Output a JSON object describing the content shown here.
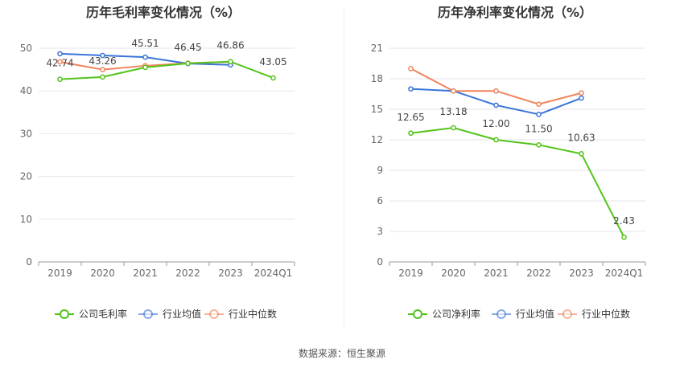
{
  "source_label": "数据来源：恒生聚源",
  "chart_data": [
    {
      "type": "line",
      "title": "历年毛利率变化情况（%）",
      "categories": [
        "2019",
        "2020",
        "2021",
        "2022",
        "2023",
        "2024Q1"
      ],
      "ylim": [
        0,
        50
      ],
      "yticks": [
        0,
        10,
        20,
        30,
        40,
        50
      ],
      "grid": true,
      "legend_position": "bottom",
      "series": [
        {
          "name": "公司毛利率",
          "color": "#52c41a",
          "values": [
            42.74,
            43.26,
            45.51,
            46.45,
            46.86,
            43.05
          ],
          "labels": [
            "42.74",
            "43.26",
            "45.51",
            "46.45",
            "46.86",
            "43.05"
          ]
        },
        {
          "name": "行业均值",
          "color": "#3a74d8",
          "values": [
            48.7,
            48.3,
            47.9,
            46.4,
            46.1,
            null
          ]
        },
        {
          "name": "行业中位数",
          "color": "#f0845c",
          "values": [
            46.8,
            45.0,
            45.9,
            46.5,
            46.8,
            null
          ]
        }
      ]
    },
    {
      "type": "line",
      "title": "历年净利率变化情况（%）",
      "categories": [
        "2019",
        "2020",
        "2021",
        "2022",
        "2023",
        "2024Q1"
      ],
      "ylim": [
        0,
        21
      ],
      "yticks": [
        0,
        3,
        6,
        9,
        12,
        15,
        18,
        21
      ],
      "grid": true,
      "legend_position": "bottom",
      "series": [
        {
          "name": "公司净利率",
          "color": "#52c41a",
          "values": [
            12.65,
            13.18,
            12.0,
            11.5,
            10.63,
            2.43
          ],
          "labels": [
            "12.65",
            "13.18",
            "12.00",
            "11.50",
            "10.63",
            "2.43"
          ]
        },
        {
          "name": "行业均值",
          "color": "#3a74d8",
          "values": [
            17.0,
            16.8,
            15.4,
            14.5,
            16.1,
            null
          ]
        },
        {
          "name": "行业中位数",
          "color": "#f0845c",
          "values": [
            19.0,
            16.8,
            16.8,
            15.5,
            16.6,
            null
          ]
        }
      ]
    }
  ]
}
